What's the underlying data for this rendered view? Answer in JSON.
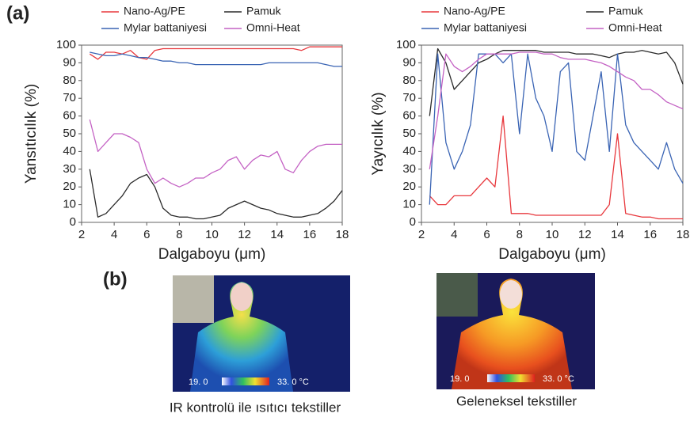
{
  "panel_labels": [
    "(a)",
    "(b)"
  ],
  "chart_data": [
    {
      "type": "line",
      "ylabel": "Yansıtıcılık (%)",
      "xlabel": "Dalgaboyu (μm)",
      "x": [
        2.5,
        3,
        3.5,
        4,
        4.5,
        5,
        5.5,
        6,
        6.5,
        7,
        7.5,
        8,
        8.5,
        9,
        9.5,
        10,
        10.5,
        11,
        11.5,
        12,
        12.5,
        13,
        13.5,
        14,
        14.5,
        15,
        15.5,
        16,
        16.5,
        17,
        17.5,
        18
      ],
      "xlim": [
        2,
        18
      ],
      "xticks": [
        2,
        4,
        6,
        8,
        10,
        12,
        14,
        16,
        18
      ],
      "ylim": [
        0,
        100
      ],
      "yticks": [
        0,
        10,
        20,
        30,
        40,
        50,
        60,
        70,
        80,
        90,
        100
      ],
      "series": [
        {
          "name": "Nano-Ag/PE",
          "color": "#e8383d",
          "values": [
            95,
            92,
            96,
            96,
            95,
            97,
            93,
            92,
            97,
            98,
            98,
            98,
            98,
            98,
            98,
            98,
            98,
            98,
            98,
            98,
            98,
            98,
            98,
            98,
            98,
            98,
            97,
            99,
            99,
            99,
            99,
            99
          ]
        },
        {
          "name": "Pamuk",
          "color": "#2a2a2a",
          "values": [
            30,
            3,
            5,
            10,
            15,
            22,
            25,
            27,
            20,
            8,
            4,
            3,
            3,
            2,
            2,
            3,
            4,
            8,
            10,
            12,
            10,
            8,
            7,
            5,
            4,
            3,
            3,
            4,
            5,
            8,
            12,
            18
          ]
        },
        {
          "name": "Mylar battaniyesi",
          "color": "#3a64b4",
          "values": [
            96,
            95,
            94,
            94,
            95,
            94,
            93,
            93,
            92,
            91,
            91,
            90,
            90,
            89,
            89,
            89,
            89,
            89,
            89,
            89,
            89,
            89,
            90,
            90,
            90,
            90,
            90,
            90,
            90,
            89,
            88,
            88
          ]
        },
        {
          "name": "Omni-Heat",
          "color": "#c462c4",
          "values": [
            58,
            40,
            45,
            50,
            50,
            48,
            45,
            30,
            22,
            25,
            22,
            20,
            22,
            25,
            25,
            28,
            30,
            35,
            37,
            30,
            35,
            38,
            37,
            40,
            30,
            28,
            35,
            40,
            43,
            44,
            44,
            44
          ]
        }
      ]
    },
    {
      "type": "line",
      "ylabel": "Yayıcılık (%)",
      "xlabel": "Dalgaboyu (μm)",
      "x": [
        2.5,
        3,
        3.5,
        4,
        4.5,
        5,
        5.5,
        6,
        6.5,
        7,
        7.5,
        8,
        8.5,
        9,
        9.5,
        10,
        10.5,
        11,
        11.5,
        12,
        12.5,
        13,
        13.5,
        14,
        14.5,
        15,
        15.5,
        16,
        16.5,
        17,
        17.5,
        18
      ],
      "xlim": [
        2,
        18
      ],
      "xticks": [
        2,
        4,
        6,
        8,
        10,
        12,
        14,
        16,
        18
      ],
      "ylim": [
        0,
        100
      ],
      "yticks": [
        0,
        10,
        20,
        30,
        40,
        50,
        60,
        70,
        80,
        90,
        100
      ],
      "series": [
        {
          "name": "Nano-Ag/PE",
          "color": "#e8383d",
          "values": [
            15,
            10,
            10,
            15,
            15,
            15,
            20,
            25,
            20,
            60,
            5,
            5,
            5,
            4,
            4,
            4,
            4,
            4,
            4,
            4,
            4,
            4,
            10,
            50,
            5,
            4,
            3,
            3,
            2,
            2,
            2,
            2
          ]
        },
        {
          "name": "Pamuk",
          "color": "#2a2a2a",
          "values": [
            60,
            98,
            90,
            75,
            80,
            85,
            90,
            92,
            95,
            97,
            97,
            97,
            97,
            97,
            96,
            96,
            96,
            96,
            95,
            95,
            95,
            94,
            93,
            95,
            96,
            96,
            97,
            96,
            95,
            96,
            90,
            78
          ]
        },
        {
          "name": "Mylar battaniyesi",
          "color": "#3a64b4",
          "values": [
            10,
            95,
            45,
            30,
            40,
            55,
            95,
            95,
            95,
            90,
            95,
            50,
            95,
            70,
            60,
            40,
            85,
            90,
            40,
            35,
            60,
            85,
            40,
            95,
            55,
            45,
            40,
            35,
            30,
            45,
            30,
            22
          ]
        },
        {
          "name": "Omni-Heat",
          "color": "#c462c4",
          "values": [
            30,
            60,
            95,
            88,
            85,
            88,
            92,
            95,
            95,
            95,
            95,
            96,
            96,
            96,
            95,
            95,
            93,
            92,
            92,
            92,
            91,
            90,
            88,
            85,
            82,
            80,
            75,
            75,
            72,
            68,
            66,
            64
          ]
        }
      ]
    }
  ],
  "images": [
    {
      "caption": "IR kontrolü ile ısıtıcı tekstiller",
      "scale_min": "19. 0",
      "scale_max": "33. 0 °C"
    },
    {
      "caption": "Geleneksel tekstiller",
      "scale_min": "19. 0",
      "scale_max": "33. 0 °C"
    }
  ]
}
